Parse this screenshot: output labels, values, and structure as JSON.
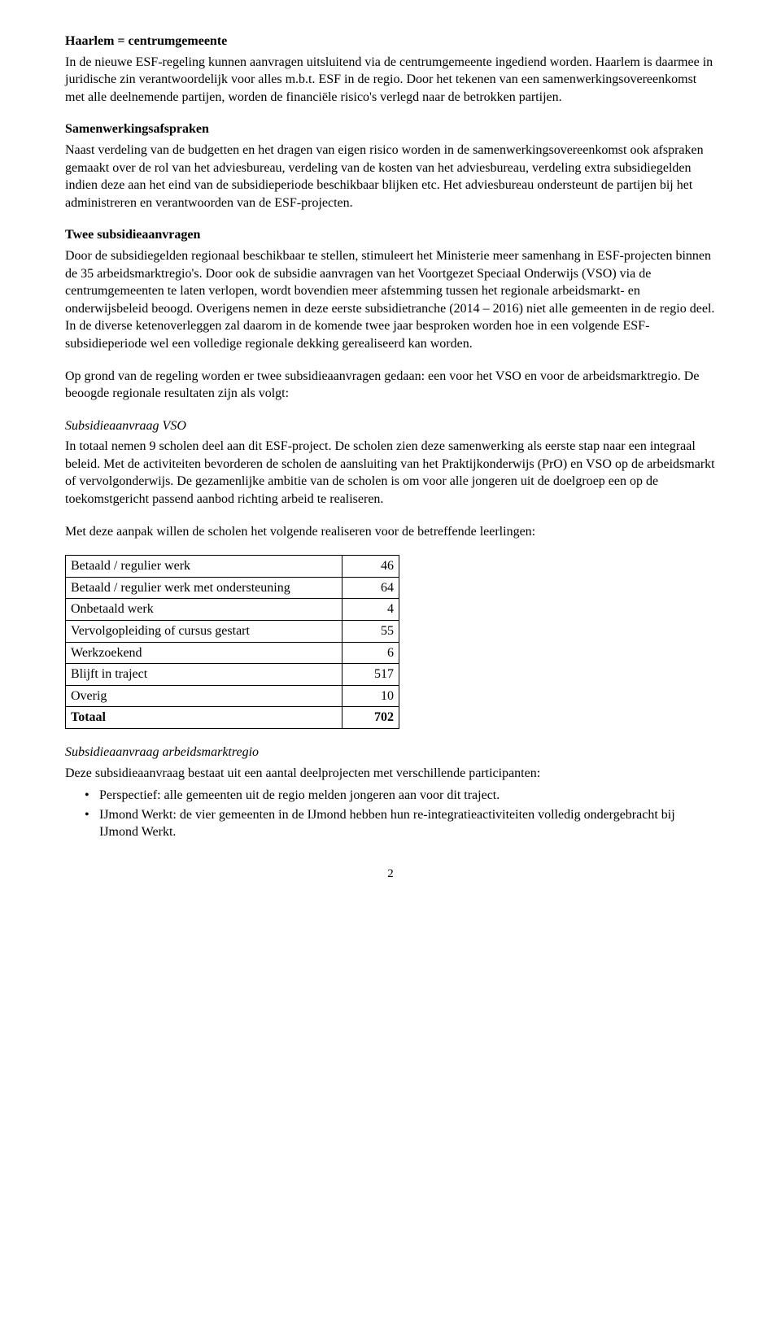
{
  "section1": {
    "heading": "Haarlem = centrumgemeente",
    "body": "In de nieuwe ESF-regeling kunnen aanvragen uitsluitend via de centrumgemeente ingediend worden. Haarlem is daarmee in juridische zin verantwoordelijk voor alles m.b.t. ESF in de regio. Door het tekenen van een samenwerkingsovereenkomst met alle deelnemende partijen, worden de financiële risico's verlegd naar de betrokken partijen."
  },
  "section2": {
    "heading": "Samenwerkingsafspraken",
    "body": "Naast verdeling van de budgetten en het dragen van eigen risico worden in de samenwerkingsovereenkomst ook afspraken gemaakt over de rol van het adviesbureau, verdeling van de kosten van het adviesbureau, verdeling extra subsidiegelden indien deze aan het eind van de subsidieperiode beschikbaar blijken etc. Het adviesbureau ondersteunt de partijen bij het administreren en verantwoorden van de ESF-projecten."
  },
  "section3": {
    "heading": "Twee subsidieaanvragen",
    "body1": "Door de subsidiegelden regionaal beschikbaar te stellen, stimuleert het Ministerie meer samenhang in ESF-projecten binnen de 35 arbeidsmarktregio's. Door ook de subsidie aanvragen van het Voortgezet Speciaal Onderwijs (VSO) via de centrumgemeenten te laten verlopen, wordt bovendien meer afstemming tussen het regionale arbeidsmarkt- en onderwijsbeleid beoogd. Overigens nemen in deze eerste subsidietranche (2014 – 2016) niet alle gemeenten in de regio deel. In de diverse ketenoverleggen zal daarom in de komende twee jaar besproken worden hoe in een volgende ESF-subsidieperiode wel een volledige regionale dekking gerealiseerd kan worden.",
    "body2": "Op grond van de regeling worden er twee subsidieaanvragen gedaan: een voor het VSO en voor de arbeidsmarktregio. De beoogde regionale resultaten zijn als volgt:"
  },
  "section4": {
    "heading": "Subsidieaanvraag VSO",
    "body1": "In totaal nemen 9 scholen deel aan dit ESF-project. De scholen zien deze samenwerking als eerste stap naar een integraal beleid. Met de activiteiten bevorderen de scholen de aansluiting van het Praktijkonderwijs (PrO) en VSO op de arbeidsmarkt of vervolgonderwijs. De gezamenlijke ambitie van de scholen is om voor alle jongeren uit de doelgroep een op de toekomstgericht passend aanbod richting arbeid te realiseren.",
    "body2": "Met deze aanpak willen de scholen het volgende realiseren voor de betreffende leerlingen:"
  },
  "table": {
    "rows": [
      {
        "label": "Betaald / regulier werk",
        "value": "46",
        "bold": false
      },
      {
        "label": "Betaald / regulier werk met ondersteuning",
        "value": "64",
        "bold": false
      },
      {
        "label": "Onbetaald werk",
        "value": "4",
        "bold": false
      },
      {
        "label": "Vervolgopleiding of cursus gestart",
        "value": "55",
        "bold": false
      },
      {
        "label": "Werkzoekend",
        "value": "6",
        "bold": false
      },
      {
        "label": "Blijft in traject",
        "value": "517",
        "bold": false
      },
      {
        "label": "Overig",
        "value": "10",
        "bold": false
      },
      {
        "label": "Totaal",
        "value": "702",
        "bold": true
      }
    ]
  },
  "section5": {
    "heading": "Subsidieaanvraag arbeidsmarktregio",
    "body": "Deze subsidieaanvraag bestaat uit een aantal deelprojecten met verschillende participanten:",
    "bullets": [
      "Perspectief: alle gemeenten uit de regio melden jongeren aan voor dit traject.",
      "IJmond Werkt: de vier gemeenten in de IJmond hebben hun re-integratieactiviteiten volledig ondergebracht bij IJmond Werkt."
    ]
  },
  "pageNumber": "2"
}
